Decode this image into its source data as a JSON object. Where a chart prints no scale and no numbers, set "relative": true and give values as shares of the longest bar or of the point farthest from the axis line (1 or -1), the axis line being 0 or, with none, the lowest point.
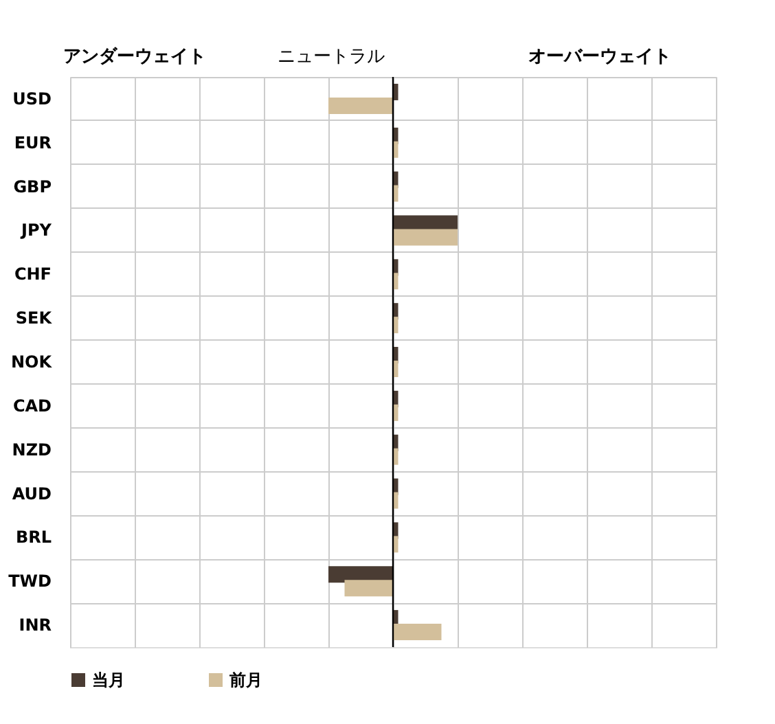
{
  "chart_data": {
    "type": "bar",
    "orientation": "horizontal",
    "relative": true,
    "grid": true,
    "legend": "bottom",
    "categories": [
      "USD",
      "EUR",
      "GBP",
      "JPY",
      "CHF",
      "SEK",
      "NOK",
      "CAD",
      "NZD",
      "AUD",
      "BRL",
      "TWD",
      "INR"
    ],
    "series": [
      {
        "name": "当月",
        "color": "#4a3c33",
        "values": [
          0.08,
          0.08,
          0.08,
          1,
          0.08,
          0.08,
          0.08,
          0.08,
          0.08,
          0.08,
          0.08,
          -1,
          0.08
        ]
      },
      {
        "name": "前月",
        "color": "#d3bf9b",
        "values": [
          -1,
          0.08,
          0.08,
          1,
          0.08,
          0.08,
          0.08,
          0.08,
          0.08,
          0.08,
          0.08,
          -0.75,
          0.75
        ]
      }
    ],
    "annotations": [
      "アンダーウェイト",
      "ニュートラル",
      "オーバーウェイト"
    ]
  }
}
